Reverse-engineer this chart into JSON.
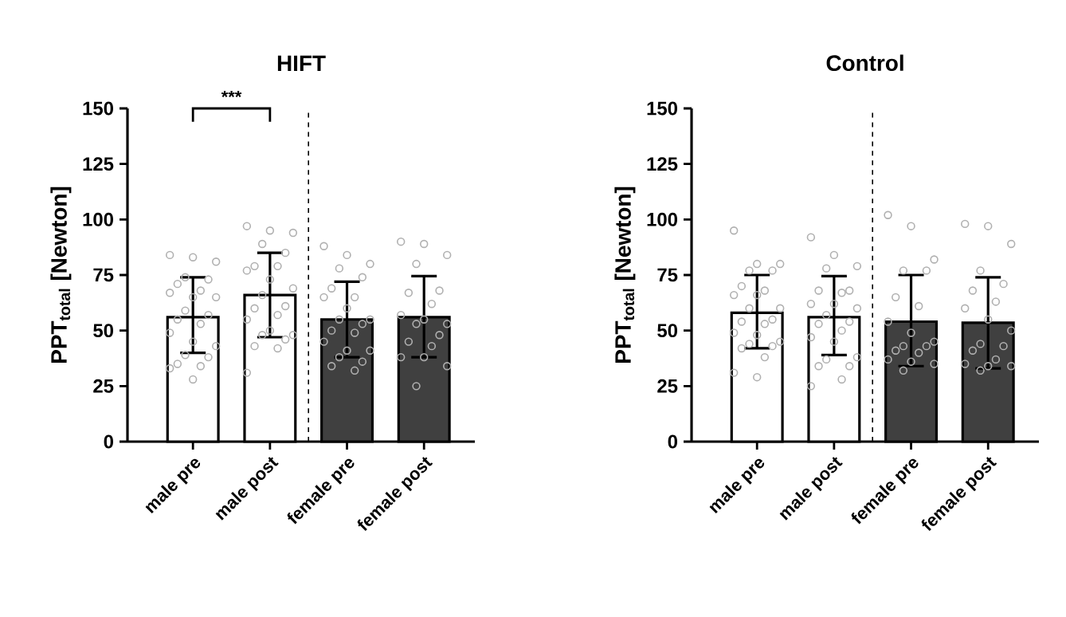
{
  "chart_data": [
    {
      "type": "bar",
      "title": "HIFT",
      "ylabel": "PPT$_{total}$ [Newton]",
      "categories": [
        "male pre",
        "male post",
        "female pre",
        "female post"
      ],
      "ylim": [
        0,
        150
      ],
      "yticks": [
        0,
        25,
        50,
        75,
        100,
        125,
        150
      ],
      "annotations": [
        "***"
      ],
      "series": [
        {
          "values": [
            56,
            66,
            55,
            56
          ],
          "colors": [
            "#ffffff",
            "#ffffff",
            "#404040",
            "#404040"
          ],
          "errors": [
            [
              40,
              74
            ],
            [
              47,
              85
            ],
            [
              38,
              72
            ],
            [
              38,
              74.5
            ]
          ]
        },
        {
          "type": "scatter",
          "marker": "circle",
          "color": "#b0b0b0",
          "x": [
            "male pre",
            "male pre",
            "male pre",
            "male pre",
            "male pre",
            "male pre",
            "male pre",
            "male pre",
            "male pre",
            "male pre",
            "male pre",
            "male pre",
            "male pre",
            "male pre",
            "male pre",
            "male pre",
            "male pre",
            "male pre",
            "male pre",
            "male pre",
            "male pre",
            "male pre",
            "male pre",
            "male post",
            "male post",
            "male post",
            "male post",
            "male post",
            "male post",
            "male post",
            "male post",
            "male post",
            "male post",
            "male post",
            "male post",
            "male post",
            "male post",
            "male post",
            "male post",
            "male post",
            "male post",
            "male post",
            "male post",
            "male post",
            "male post",
            "female pre",
            "female pre",
            "female pre",
            "female pre",
            "female pre",
            "female pre",
            "female pre",
            "female pre",
            "female pre",
            "female pre",
            "female pre",
            "female pre",
            "female pre",
            "female pre",
            "female pre",
            "female pre",
            "female pre",
            "female pre",
            "female pre",
            "female pre",
            "female pre",
            "female post",
            "female post",
            "female post",
            "female post",
            "female post",
            "female post",
            "female post",
            "female post",
            "female post",
            "female post",
            "female post",
            "female post",
            "female post",
            "female post",
            "female post",
            "female post",
            "female post",
            "female post"
          ],
          "values": [
            84,
            83,
            81,
            74,
            73,
            71,
            68,
            67,
            65,
            65,
            59,
            57,
            55,
            53,
            49,
            45,
            43,
            39,
            38,
            35,
            34,
            33,
            28,
            97,
            95,
            94,
            89,
            85,
            79,
            79,
            77,
            73,
            69,
            66,
            61,
            60,
            57,
            55,
            50,
            48,
            48,
            46,
            43,
            42,
            31,
            88,
            84,
            80,
            78,
            74,
            69,
            65,
            65,
            60,
            55,
            55,
            53,
            50,
            49,
            45,
            41,
            41,
            38,
            36,
            34,
            32,
            90,
            89,
            84,
            80,
            68,
            67,
            62,
            57,
            55,
            53,
            53,
            48,
            45,
            43,
            38,
            38,
            34,
            25
          ]
        }
      ]
    },
    {
      "type": "bar",
      "title": "Control",
      "ylabel": "PPT$_{total}$ [Newton]",
      "categories": [
        "male pre",
        "male post",
        "female pre",
        "female post"
      ],
      "ylim": [
        0,
        150
      ],
      "yticks": [
        0,
        25,
        50,
        75,
        100,
        125,
        150
      ],
      "series": [
        {
          "values": [
            58,
            56,
            54,
            53.5
          ],
          "colors": [
            "#ffffff",
            "#ffffff",
            "#404040",
            "#404040"
          ],
          "errors": [
            [
              42,
              75
            ],
            [
              39,
              74.5
            ],
            [
              34,
              75
            ],
            [
              33,
              74
            ]
          ]
        },
        {
          "type": "scatter",
          "marker": "circle",
          "color": "#b0b0b0",
          "x": [
            "male pre",
            "male pre",
            "male pre",
            "male pre",
            "male pre",
            "male pre",
            "male pre",
            "male pre",
            "male pre",
            "male pre",
            "male pre",
            "male pre",
            "male pre",
            "male pre",
            "male pre",
            "male pre",
            "male pre",
            "male pre",
            "male pre",
            "male pre",
            "male pre",
            "male pre",
            "male pre",
            "male post",
            "male post",
            "male post",
            "male post",
            "male post",
            "male post",
            "male post",
            "male post",
            "male post",
            "male post",
            "male post",
            "male post",
            "male post",
            "male post",
            "male post",
            "male post",
            "male post",
            "male post",
            "male post",
            "male post",
            "male post",
            "male post",
            "female pre",
            "female pre",
            "female pre",
            "female pre",
            "female pre",
            "female pre",
            "female pre",
            "female pre",
            "female pre",
            "female pre",
            "female pre",
            "female pre",
            "female pre",
            "female pre",
            "female pre",
            "female pre",
            "female pre",
            "female pre",
            "female post",
            "female post",
            "female post",
            "female post",
            "female post",
            "female post",
            "female post",
            "female post",
            "female post",
            "female post",
            "female post",
            "female post",
            "female post",
            "female post",
            "female post",
            "female post",
            "female post",
            "female post"
          ],
          "values": [
            95,
            80,
            80,
            77,
            77,
            70,
            68,
            66,
            66,
            60,
            60,
            55,
            54,
            53,
            49,
            48,
            45,
            44,
            43,
            42,
            38,
            31,
            29,
            92,
            84,
            79,
            78,
            68,
            68,
            67,
            62,
            62,
            60,
            57,
            54,
            53,
            50,
            47,
            45,
            38,
            37,
            34,
            34,
            28,
            25,
            102,
            97,
            82,
            77,
            77,
            65,
            61,
            54,
            49,
            45,
            43,
            43,
            41,
            40,
            37,
            36,
            35,
            32,
            98,
            97,
            89,
            77,
            71,
            68,
            63,
            60,
            55,
            50,
            44,
            43,
            41,
            37,
            35,
            34,
            34,
            32
          ]
        }
      ]
    }
  ]
}
